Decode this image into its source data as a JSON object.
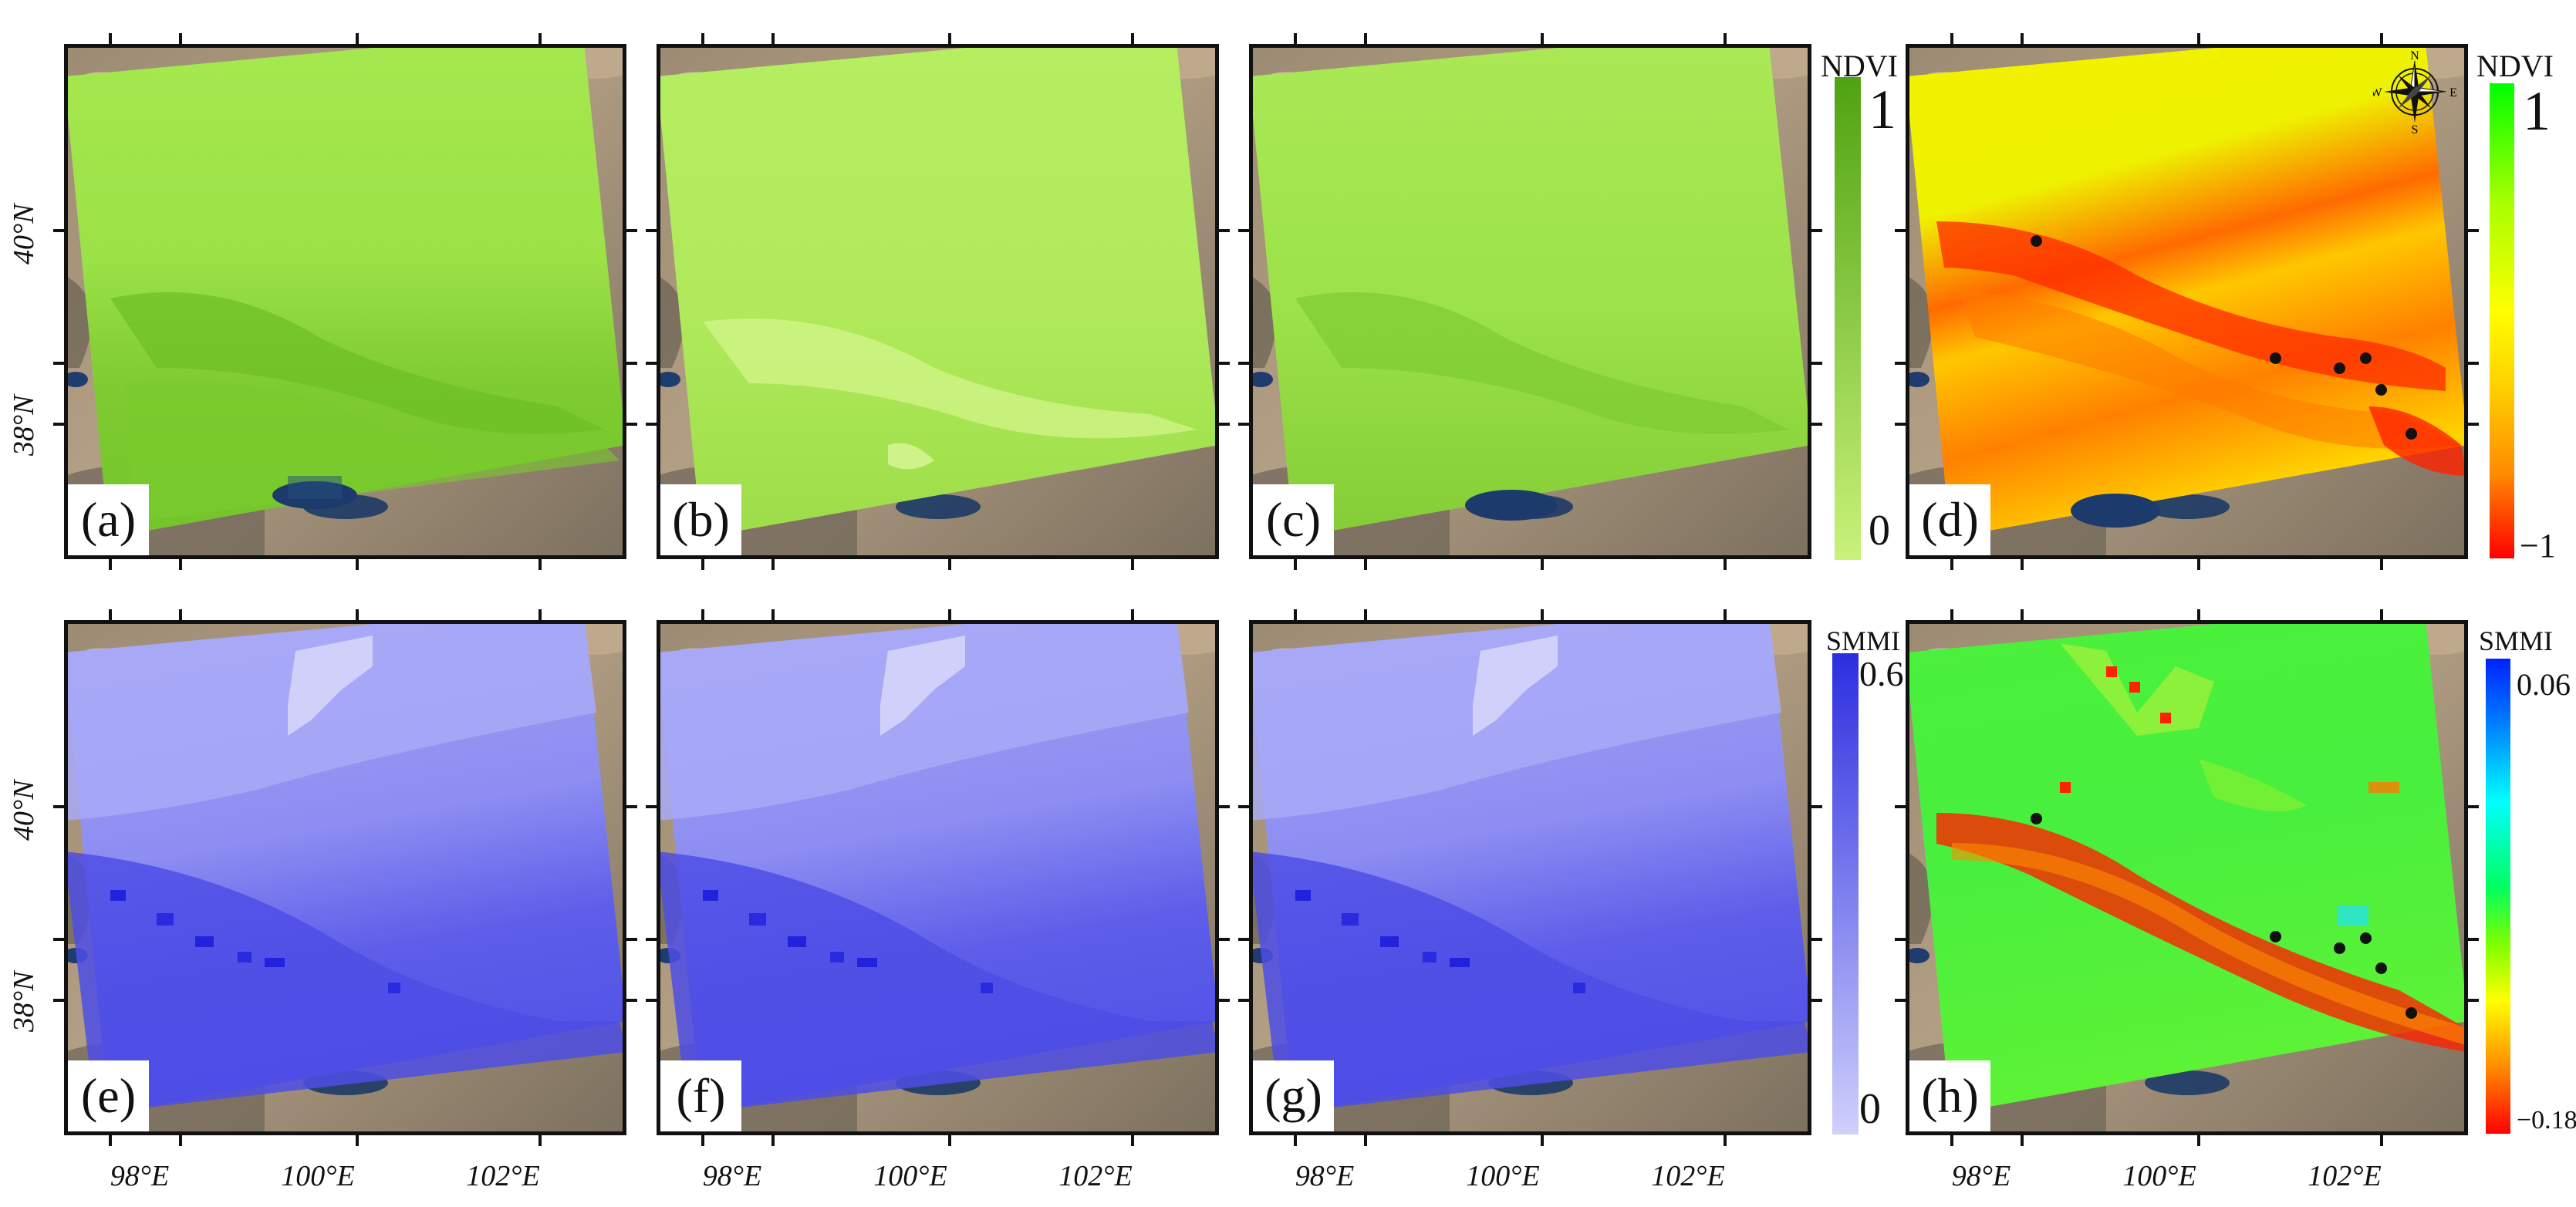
{
  "panels": [
    {
      "label": "(a)"
    },
    {
      "label": "(b)"
    },
    {
      "label": "(c)"
    },
    {
      "label": "(d)"
    },
    {
      "label": "(e)"
    },
    {
      "label": "(f)"
    },
    {
      "label": "(g)"
    },
    {
      "label": "(h)"
    }
  ],
  "lat_labels": [
    "40°N",
    "38°N"
  ],
  "lon_labels": [
    "98°E",
    "100°E",
    "102°E"
  ],
  "colorbars": {
    "ndvi_green": {
      "title": "NDVI",
      "max": "1",
      "min": "0",
      "colors": [
        "#4fa312",
        "#c9f27a"
      ]
    },
    "ndvi_diff": {
      "title": "NDVI",
      "max": "1",
      "min": "−1",
      "colors": [
        "#00ff00",
        "#ffff00",
        "#ff9a00",
        "#ff0000"
      ]
    },
    "smmi_blue": {
      "title": "SMMI",
      "max": "0.6",
      "min": "0",
      "colors": [
        "#2c2ee0",
        "#cfd0fb"
      ]
    },
    "smmi_diff": {
      "title": "SMMI",
      "max": "0.06",
      "min": "−0.18",
      "colors": [
        "#0028ff",
        "#00ffff",
        "#00ff40",
        "#ffff00",
        "#ff0000"
      ]
    }
  },
  "compass": {
    "n": "N",
    "s": "S",
    "e": "E",
    "w": "W"
  },
  "colors": {
    "ndvi_fill": "#9fe04a",
    "ndvi_dark": "#5fb81e",
    "ndvi_b_fill": "#b3ec5c",
    "ndvi_b_light": "#d6f78f",
    "smmi_fill": "#9595f4",
    "smmi_dark": "#4c4ce8",
    "smmi_light": "#c9c9fb",
    "diff_yellow": "#f4f000",
    "diff_red": "#ff3300",
    "smmi_diff_green": "#3ef53a"
  }
}
